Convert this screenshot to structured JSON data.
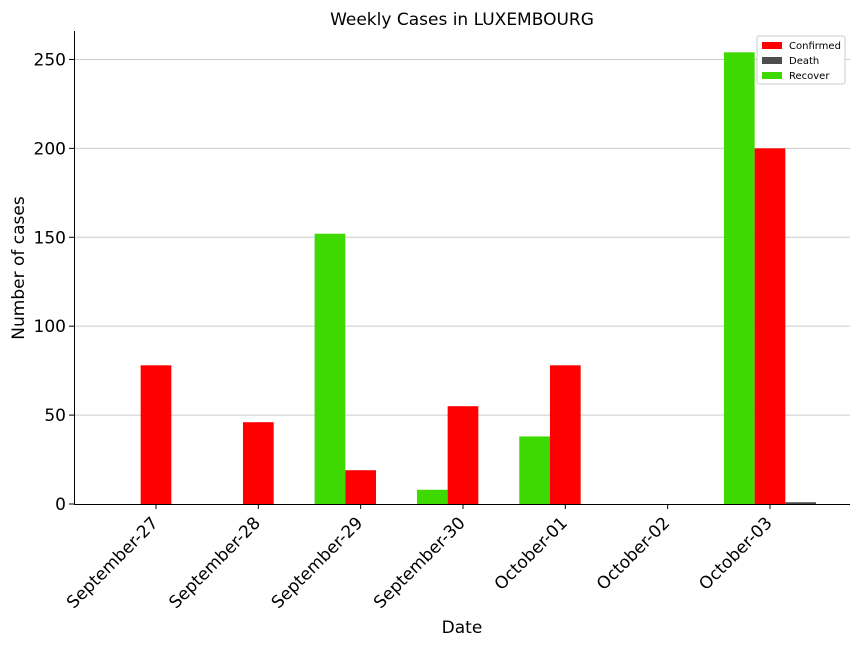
{
  "chart_data": {
    "type": "bar",
    "title": "Weekly Cases in LUXEMBOURG",
    "xlabel": "Date",
    "ylabel": "Number of cases",
    "categories": [
      "September-27",
      "September-28",
      "September-29",
      "September-30",
      "October-01",
      "October-02",
      "October-03"
    ],
    "series": [
      {
        "name": "Recover",
        "color": "#3dd900",
        "values": [
          0,
          0,
          152,
          8,
          38,
          0,
          254
        ]
      },
      {
        "name": "Confirmed",
        "color": "#ff0000",
        "values": [
          78,
          46,
          19,
          55,
          78,
          0,
          200
        ]
      },
      {
        "name": "Death",
        "color": "#4d4d4f",
        "values": [
          0,
          0,
          0,
          0,
          0,
          0,
          1
        ]
      }
    ],
    "legend_order": [
      "Confirmed",
      "Death",
      "Recover"
    ],
    "yticks": [
      0,
      50,
      100,
      150,
      200,
      250
    ],
    "ylim": [
      0,
      266
    ],
    "grid": "horizontal",
    "legend_position": "top-right"
  }
}
